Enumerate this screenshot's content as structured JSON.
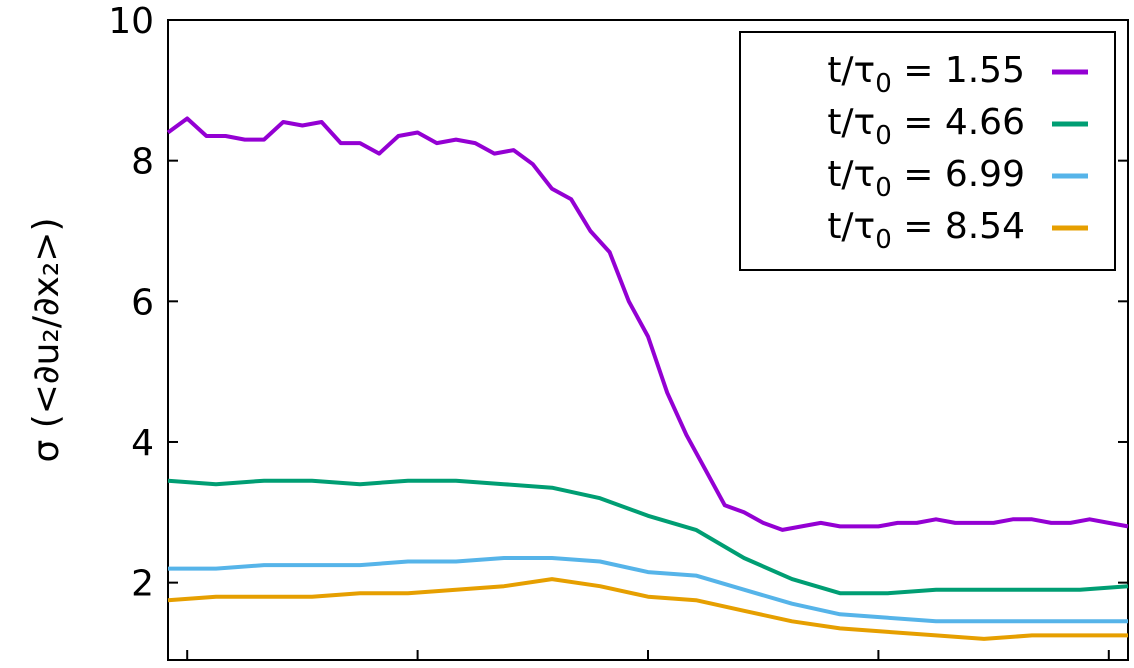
{
  "chart_data": {
    "type": "line",
    "title": "",
    "xlabel": "",
    "ylabel": "σ (<∂u₂/∂x₂>)",
    "ylim": [
      0.9,
      10
    ],
    "xlim": [
      0,
      1
    ],
    "yticks": [
      2,
      4,
      6,
      8,
      10
    ],
    "ytick_labels": [
      "2",
      "4",
      "6",
      "8",
      "10"
    ],
    "grid": false,
    "legend_position": "top-right",
    "series": [
      {
        "name": "t/τ0 = 1.55",
        "label_parts": {
          "prefix": "t/τ",
          "sub": "0",
          "suffix": " = 1.55"
        },
        "color": "#9400d3",
        "x": [
          0.0,
          0.02,
          0.04,
          0.06,
          0.08,
          0.1,
          0.12,
          0.14,
          0.16,
          0.18,
          0.2,
          0.22,
          0.24,
          0.26,
          0.28,
          0.3,
          0.32,
          0.34,
          0.36,
          0.38,
          0.4,
          0.42,
          0.44,
          0.46,
          0.48,
          0.5,
          0.52,
          0.54,
          0.56,
          0.58,
          0.6,
          0.62,
          0.64,
          0.66,
          0.68,
          0.7,
          0.72,
          0.74,
          0.76,
          0.78,
          0.8,
          0.82,
          0.84,
          0.86,
          0.88,
          0.9,
          0.92,
          0.94,
          0.96,
          0.98,
          1.0
        ],
        "values": [
          8.4,
          8.6,
          8.35,
          8.35,
          8.3,
          8.3,
          8.55,
          8.5,
          8.55,
          8.25,
          8.25,
          8.1,
          8.35,
          8.4,
          8.25,
          8.3,
          8.25,
          8.1,
          8.15,
          7.95,
          7.6,
          7.45,
          7.0,
          6.7,
          6.0,
          5.5,
          4.7,
          4.1,
          3.6,
          3.1,
          3.0,
          2.85,
          2.75,
          2.8,
          2.85,
          2.8,
          2.8,
          2.8,
          2.85,
          2.85,
          2.9,
          2.85,
          2.85,
          2.85,
          2.9,
          2.9,
          2.85,
          2.85,
          2.9,
          2.85,
          2.8
        ]
      },
      {
        "name": "t/τ0 = 4.66",
        "label_parts": {
          "prefix": "t/τ",
          "sub": "0",
          "suffix": " = 4.66"
        },
        "color": "#009e73",
        "x": [
          0.0,
          0.05,
          0.1,
          0.15,
          0.2,
          0.25,
          0.3,
          0.35,
          0.4,
          0.45,
          0.5,
          0.55,
          0.6,
          0.65,
          0.7,
          0.75,
          0.8,
          0.85,
          0.9,
          0.95,
          1.0
        ],
        "values": [
          3.45,
          3.4,
          3.45,
          3.45,
          3.4,
          3.45,
          3.45,
          3.4,
          3.35,
          3.2,
          2.95,
          2.75,
          2.35,
          2.05,
          1.85,
          1.85,
          1.9,
          1.9,
          1.9,
          1.9,
          1.95
        ]
      },
      {
        "name": "t/τ0 = 6.99",
        "label_parts": {
          "prefix": "t/τ",
          "sub": "0",
          "suffix": " = 6.99"
        },
        "color": "#56b4e9",
        "x": [
          0.0,
          0.05,
          0.1,
          0.15,
          0.2,
          0.25,
          0.3,
          0.35,
          0.4,
          0.45,
          0.5,
          0.55,
          0.6,
          0.65,
          0.7,
          0.75,
          0.8,
          0.85,
          0.9,
          0.95,
          1.0
        ],
        "values": [
          2.2,
          2.2,
          2.25,
          2.25,
          2.25,
          2.3,
          2.3,
          2.35,
          2.35,
          2.3,
          2.15,
          2.1,
          1.9,
          1.7,
          1.55,
          1.5,
          1.45,
          1.45,
          1.45,
          1.45,
          1.45
        ]
      },
      {
        "name": "t/τ0 = 8.54",
        "label_parts": {
          "prefix": "t/τ",
          "sub": "0",
          "suffix": " = 8.54"
        },
        "color": "#e69f00",
        "x": [
          0.0,
          0.05,
          0.1,
          0.15,
          0.2,
          0.25,
          0.3,
          0.35,
          0.4,
          0.45,
          0.5,
          0.55,
          0.6,
          0.65,
          0.7,
          0.75,
          0.8,
          0.85,
          0.9,
          0.95,
          1.0
        ],
        "values": [
          1.75,
          1.8,
          1.8,
          1.8,
          1.85,
          1.85,
          1.9,
          1.95,
          2.05,
          1.95,
          1.8,
          1.75,
          1.6,
          1.45,
          1.35,
          1.3,
          1.25,
          1.2,
          1.25,
          1.25,
          1.25
        ]
      }
    ]
  }
}
